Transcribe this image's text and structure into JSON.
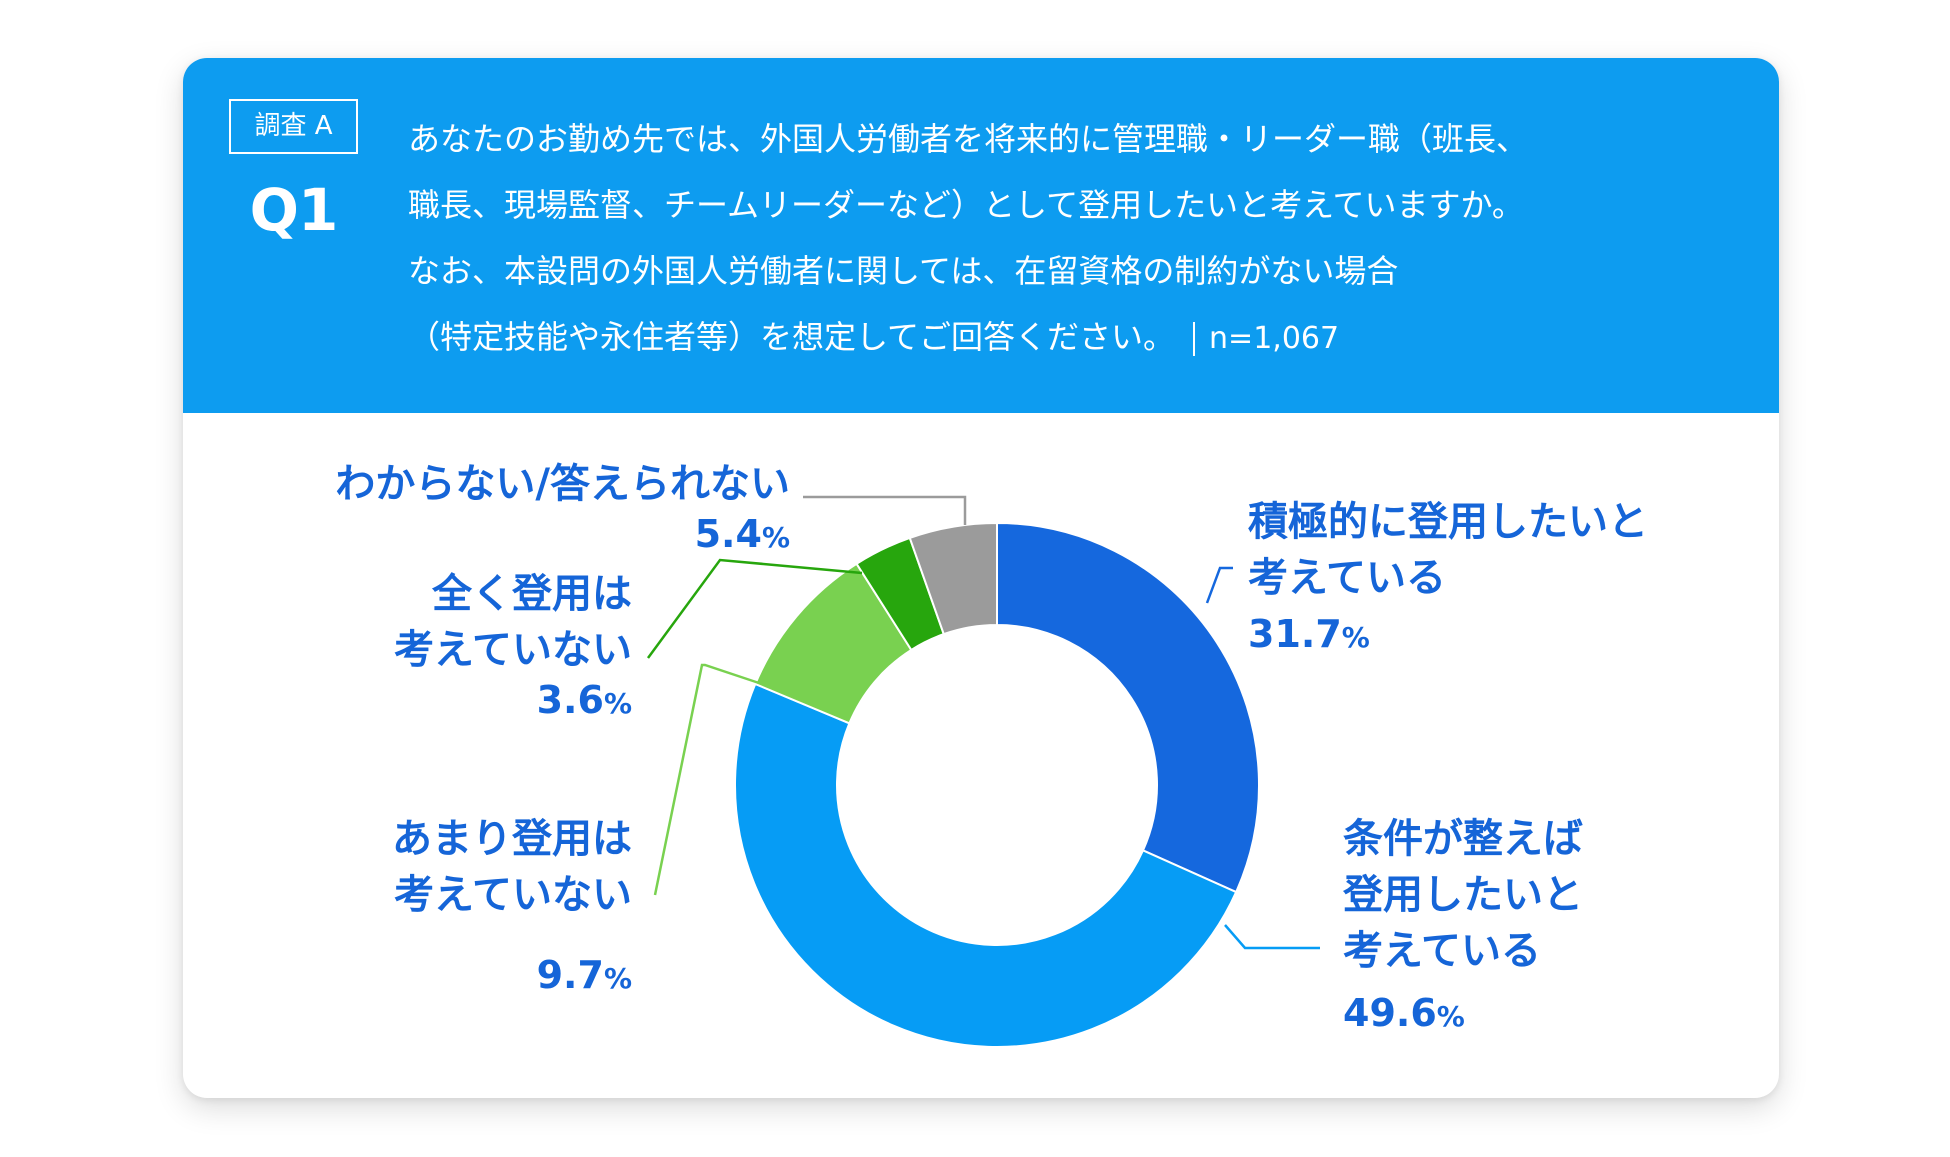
{
  "header": {
    "survey_label": "調査 A",
    "question_no": "Q1",
    "question_lines": [
      "あなたのお勤め先では、外国人労働者を将来的に管理職・リーダー職（班長、",
      "職長、現場監督、チームリーダーなど）として登用したいと考えていますか。",
      "なお、本設問の外国人労働者に関しては、在留資格の制約がない場合",
      "（特定技能や永住者等）を想定してご回答ください。"
    ],
    "sample_size": "n=1,067"
  },
  "chart_data": {
    "type": "pie",
    "donut": true,
    "unit": "%",
    "slices": [
      {
        "label_lines": [
          "積極的に登用したいと",
          "考えている"
        ],
        "value": 31.7,
        "value_text": "31.7",
        "color": "#1568de"
      },
      {
        "label_lines": [
          "条件が整えば",
          "登用したいと",
          "考えている"
        ],
        "value": 49.6,
        "value_text": "49.6",
        "color": "#069cf5"
      },
      {
        "label_lines": [
          "あまり登用は",
          "考えていない"
        ],
        "value": 9.7,
        "value_text": "9.7",
        "color": "#79d150"
      },
      {
        "label_lines": [
          "全く登用は",
          "考えていない"
        ],
        "value": 3.6,
        "value_text": "3.6",
        "color": "#27a60d"
      },
      {
        "label_lines": [
          "わからない/答えられない"
        ],
        "value": 5.4,
        "value_text": "5.4",
        "color": "#9b9b9b"
      }
    ]
  }
}
